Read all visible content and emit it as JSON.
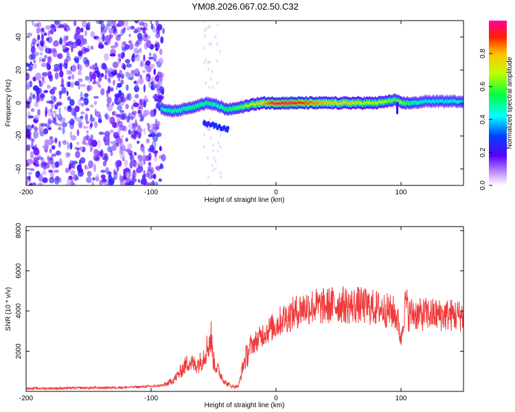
{
  "title": "YM08.2026.067.02.50.C32",
  "chart_data": [
    {
      "type": "heatmap",
      "xlabel": "Height of straight line (km)",
      "ylabel": "Frequency (Hz)",
      "xlim": [
        -200,
        150
      ],
      "ylim": [
        -50,
        50
      ],
      "x_ticks": [
        -200,
        -100,
        0,
        100
      ],
      "x_tick_labels": [
        "-200",
        "-100",
        "0",
        "100"
      ],
      "y_ticks": [
        -40,
        -20,
        0,
        20,
        40
      ],
      "y_tick_labels": [
        "-40",
        "-20",
        "0",
        "20",
        "40"
      ],
      "colorbar": {
        "label": "Normalized spectral amplitude",
        "range": [
          0,
          1
        ],
        "ticks": [
          0.0,
          0.2,
          0.4,
          0.6,
          0.8
        ],
        "tick_labels": [
          "0.0",
          "0.2",
          "0.4",
          "0.6",
          "0.8"
        ]
      },
      "ridge": {
        "x": [
          -92,
          -85,
          -75,
          -65,
          -55,
          -45,
          -40,
          -30,
          -20,
          -10,
          0,
          10,
          20,
          30,
          40,
          50,
          60,
          70,
          80,
          90,
          95,
          100,
          110,
          120,
          130,
          140,
          150
        ],
        "frequency": [
          -3,
          -5,
          -4,
          -2,
          0,
          -2,
          -4,
          -3,
          -1,
          0,
          0,
          0,
          0,
          0,
          0,
          0,
          0,
          0,
          0,
          1,
          2,
          0,
          0,
          1,
          1,
          1,
          1
        ],
        "amplitude": [
          0.45,
          0.5,
          0.5,
          0.55,
          0.5,
          0.5,
          0.55,
          0.6,
          0.7,
          0.8,
          0.95,
          0.95,
          0.9,
          0.85,
          0.8,
          0.75,
          0.75,
          0.7,
          0.7,
          0.65,
          0.6,
          0.65,
          0.5,
          0.45,
          0.45,
          0.45,
          0.45
        ]
      }
    },
    {
      "type": "line",
      "xlabel": "Height of straight line (km)",
      "ylabel": "SNR (10 * v/v)",
      "xlim": [
        -200,
        150
      ],
      "ylim": [
        0,
        8200
      ],
      "x_ticks": [
        -200,
        -100,
        0,
        100
      ],
      "x_tick_labels": [
        "-200",
        "-100",
        "0",
        "100"
      ],
      "y_ticks": [
        2000,
        4000,
        6000,
        8000
      ],
      "y_tick_labels": [
        "2000",
        "4000",
        "6000",
        "8000"
      ],
      "color": "#f03a3a",
      "series": [
        {
          "name": "SNR",
          "x": [
            -200,
            -180,
            -160,
            -140,
            -120,
            -100,
            -90,
            -85,
            -80,
            -75,
            -70,
            -65,
            -60,
            -55,
            -52,
            -50,
            -45,
            -40,
            -35,
            -30,
            -26,
            -22,
            -18,
            -14,
            -10,
            -5,
            0,
            5,
            10,
            15,
            20,
            25,
            30,
            35,
            40,
            45,
            50,
            55,
            60,
            65,
            70,
            75,
            80,
            85,
            90,
            95,
            98,
            100,
            102,
            104,
            106,
            110,
            115,
            120,
            130,
            140,
            150
          ],
          "y": [
            150,
            150,
            170,
            180,
            200,
            250,
            300,
            450,
            700,
            1100,
            1500,
            1300,
            1500,
            2200,
            2700,
            1500,
            900,
            400,
            250,
            250,
            1400,
            2000,
            2400,
            2600,
            2900,
            3100,
            3300,
            3600,
            3750,
            3900,
            4100,
            4200,
            4250,
            4200,
            4250,
            4300,
            4350,
            4300,
            4250,
            4300,
            4250,
            4200,
            4150,
            4100,
            4000,
            3900,
            3400,
            2500,
            3800,
            4500,
            3800,
            3900,
            3800,
            3850,
            3800,
            3800,
            3750
          ]
        }
      ]
    }
  ]
}
